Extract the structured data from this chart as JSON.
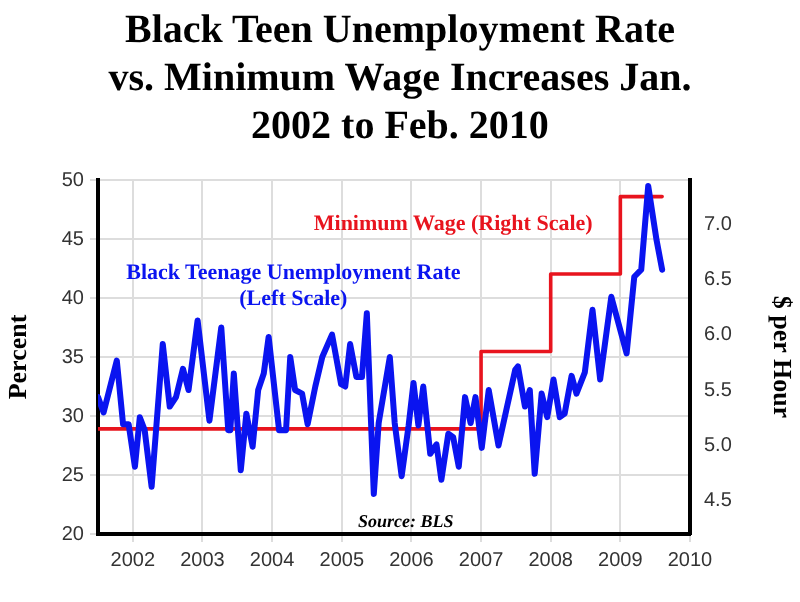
{
  "chart_data": {
    "type": "line",
    "title": "Black Teen Unemployment Rate vs. Minimum Wage Increases Jan. 2002 to Feb. 2010",
    "ylabel": "Percent",
    "y2label": "$ per Hour",
    "annotations": [
      "Source: BLS"
    ],
    "xlim": [
      2002,
      2010.5
    ],
    "xticks": [
      {
        "value": 2002.5,
        "label": "2002"
      },
      {
        "value": 2003.5,
        "label": "2003"
      },
      {
        "value": 2004.5,
        "label": "2004"
      },
      {
        "value": 2005.5,
        "label": "2005"
      },
      {
        "value": 2006.5,
        "label": "2006"
      },
      {
        "value": 2007.5,
        "label": "2007"
      },
      {
        "value": 2008.5,
        "label": "2008"
      },
      {
        "value": 2009.5,
        "label": "2009"
      },
      {
        "value": 2010.5,
        "label": "2010"
      }
    ],
    "ylim": [
      20,
      50
    ],
    "yticks": [
      20,
      25,
      30,
      35,
      40,
      45,
      50
    ],
    "y2lim": [
      4.2,
      7.4
    ],
    "y2ticks": [
      4.5,
      {
        "value": 5,
        "label": "5.0"
      },
      5.5,
      {
        "value": 6,
        "label": "6.0"
      },
      6.5,
      {
        "value": 7,
        "label": "7.0"
      }
    ],
    "grid": true,
    "legend": false,
    "marker": "none",
    "line_style": "solid",
    "series": [
      {
        "name": "Black Teenage Unemployment Rate (Left Scale)",
        "color": "#0a14f0",
        "type": "line",
        "x": [
          2002.0,
          2002.08,
          2002.27,
          2002.36,
          2002.44,
          2002.53,
          2002.6,
          2002.67,
          2002.77,
          2002.93,
          2003.03,
          2003.12,
          2003.22,
          2003.3,
          2003.43,
          2003.6,
          2003.77,
          2003.87,
          2003.9,
          2003.95,
          2004.05,
          2004.13,
          2004.22,
          2004.3,
          2004.38,
          2004.45,
          2004.6,
          2004.7,
          2004.76,
          2004.83,
          2004.93,
          2005.01,
          2005.12,
          2005.22,
          2005.36,
          2005.49,
          2005.55,
          2005.62,
          2005.71,
          2005.79,
          2005.86,
          2005.96,
          2006.03,
          2006.19,
          2006.26,
          2006.36,
          2006.46,
          2006.53,
          2006.6,
          2006.67,
          2006.77,
          2006.86,
          2006.93,
          2007.03,
          2007.1,
          2007.18,
          2007.27,
          2007.35,
          2007.42,
          2007.51,
          2007.61,
          2007.75,
          2007.99,
          2008.03,
          2008.13,
          2008.2,
          2008.27,
          2008.37,
          2008.45,
          2008.54,
          2008.63,
          2008.7,
          2008.8,
          2008.87,
          2008.99,
          2009.1,
          2009.21,
          2009.37,
          2009.59,
          2009.7,
          2009.8,
          2009.9,
          2010.02,
          2010.1
        ],
        "values": [
          31.6,
          30.3,
          34.7,
          29.3,
          29.3,
          25.7,
          29.9,
          28.8,
          24.0,
          36.1,
          30.8,
          31.6,
          34.0,
          32.2,
          38.1,
          29.6,
          37.5,
          28.8,
          28.8,
          33.6,
          25.4,
          30.2,
          27.4,
          32.2,
          33.6,
          36.7,
          28.8,
          28.8,
          35.0,
          32.2,
          31.9,
          29.3,
          32.5,
          35.0,
          36.9,
          32.7,
          32.5,
          36.1,
          33.3,
          33.3,
          38.7,
          23.4,
          29.4,
          35.0,
          29.4,
          24.9,
          29.2,
          32.8,
          29.2,
          32.5,
          26.8,
          27.6,
          24.6,
          28.5,
          28.2,
          25.7,
          31.6,
          29.4,
          31.6,
          27.3,
          32.2,
          27.5,
          33.9,
          34.2,
          30.8,
          32.2,
          25.1,
          31.9,
          29.9,
          33.1,
          29.9,
          30.2,
          33.4,
          31.9,
          33.7,
          39.0,
          33.1,
          40.1,
          35.3,
          41.8,
          42.4,
          49.5,
          44.9,
          42.4
        ]
      },
      {
        "name": "Minimum Wage (Right Scale)",
        "color": "#e8141e",
        "type": "step",
        "axis": "y2",
        "x": [
          2002.0,
          2007.5,
          2008.5,
          2009.5,
          2010.1
        ],
        "values": [
          5.15,
          5.85,
          6.55,
          7.25,
          7.25
        ]
      }
    ]
  }
}
